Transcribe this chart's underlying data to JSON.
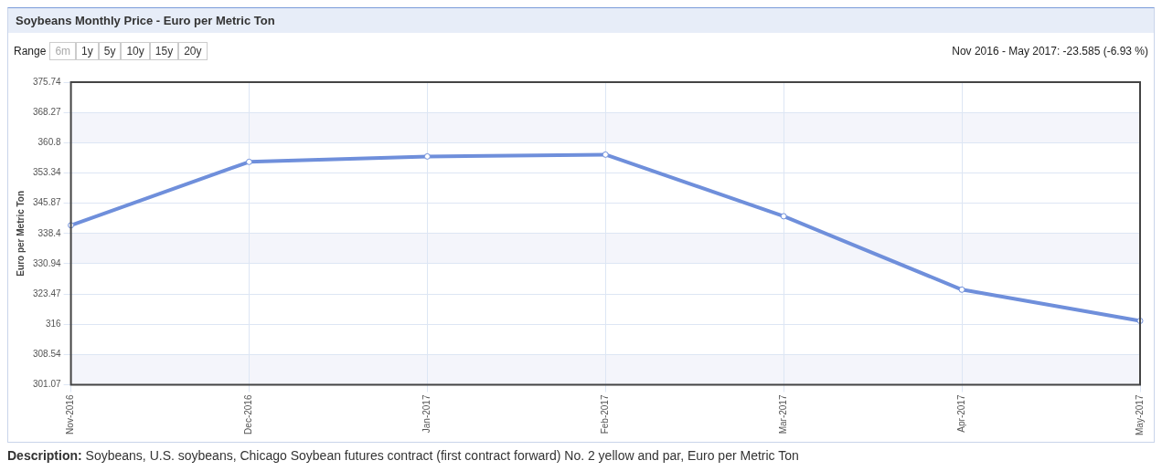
{
  "chart_data": {
    "type": "line",
    "title": "Soybeans Monthly Price - Euro per Metric Ton",
    "ylabel": "Euro per Metric Ton",
    "categories": [
      "Nov-2016",
      "Dec-2016",
      "Jan-2017",
      "Feb-2017",
      "Mar-2017",
      "Apr-2017",
      "May-2017"
    ],
    "series": [
      {
        "color": "#6f8fdb",
        "values": [
          340.42,
          356.07,
          357.41,
          357.86,
          342.65,
          324.54,
          316.84
        ]
      }
    ],
    "ylim": [
      301.07,
      375.74
    ],
    "yticks": [
      301.07,
      308.54,
      316,
      323.47,
      330.94,
      338.4,
      345.87,
      353.34,
      360.8,
      368.27,
      375.74
    ],
    "grid": true,
    "marker": "circle",
    "line_style": "solid",
    "legend": false,
    "annotations": [
      "Range",
      "6m",
      "1y",
      "5y",
      "10y",
      "15y",
      "20y",
      "Nov 2016 - May 2017: -23.585 (-6.93 %)",
      "Description: Soybeans, U.S. soybeans, Chicago Soybean futures contract (first contract forward) No. 2 yellow and par, Euro per Metric Ton"
    ]
  }
}
